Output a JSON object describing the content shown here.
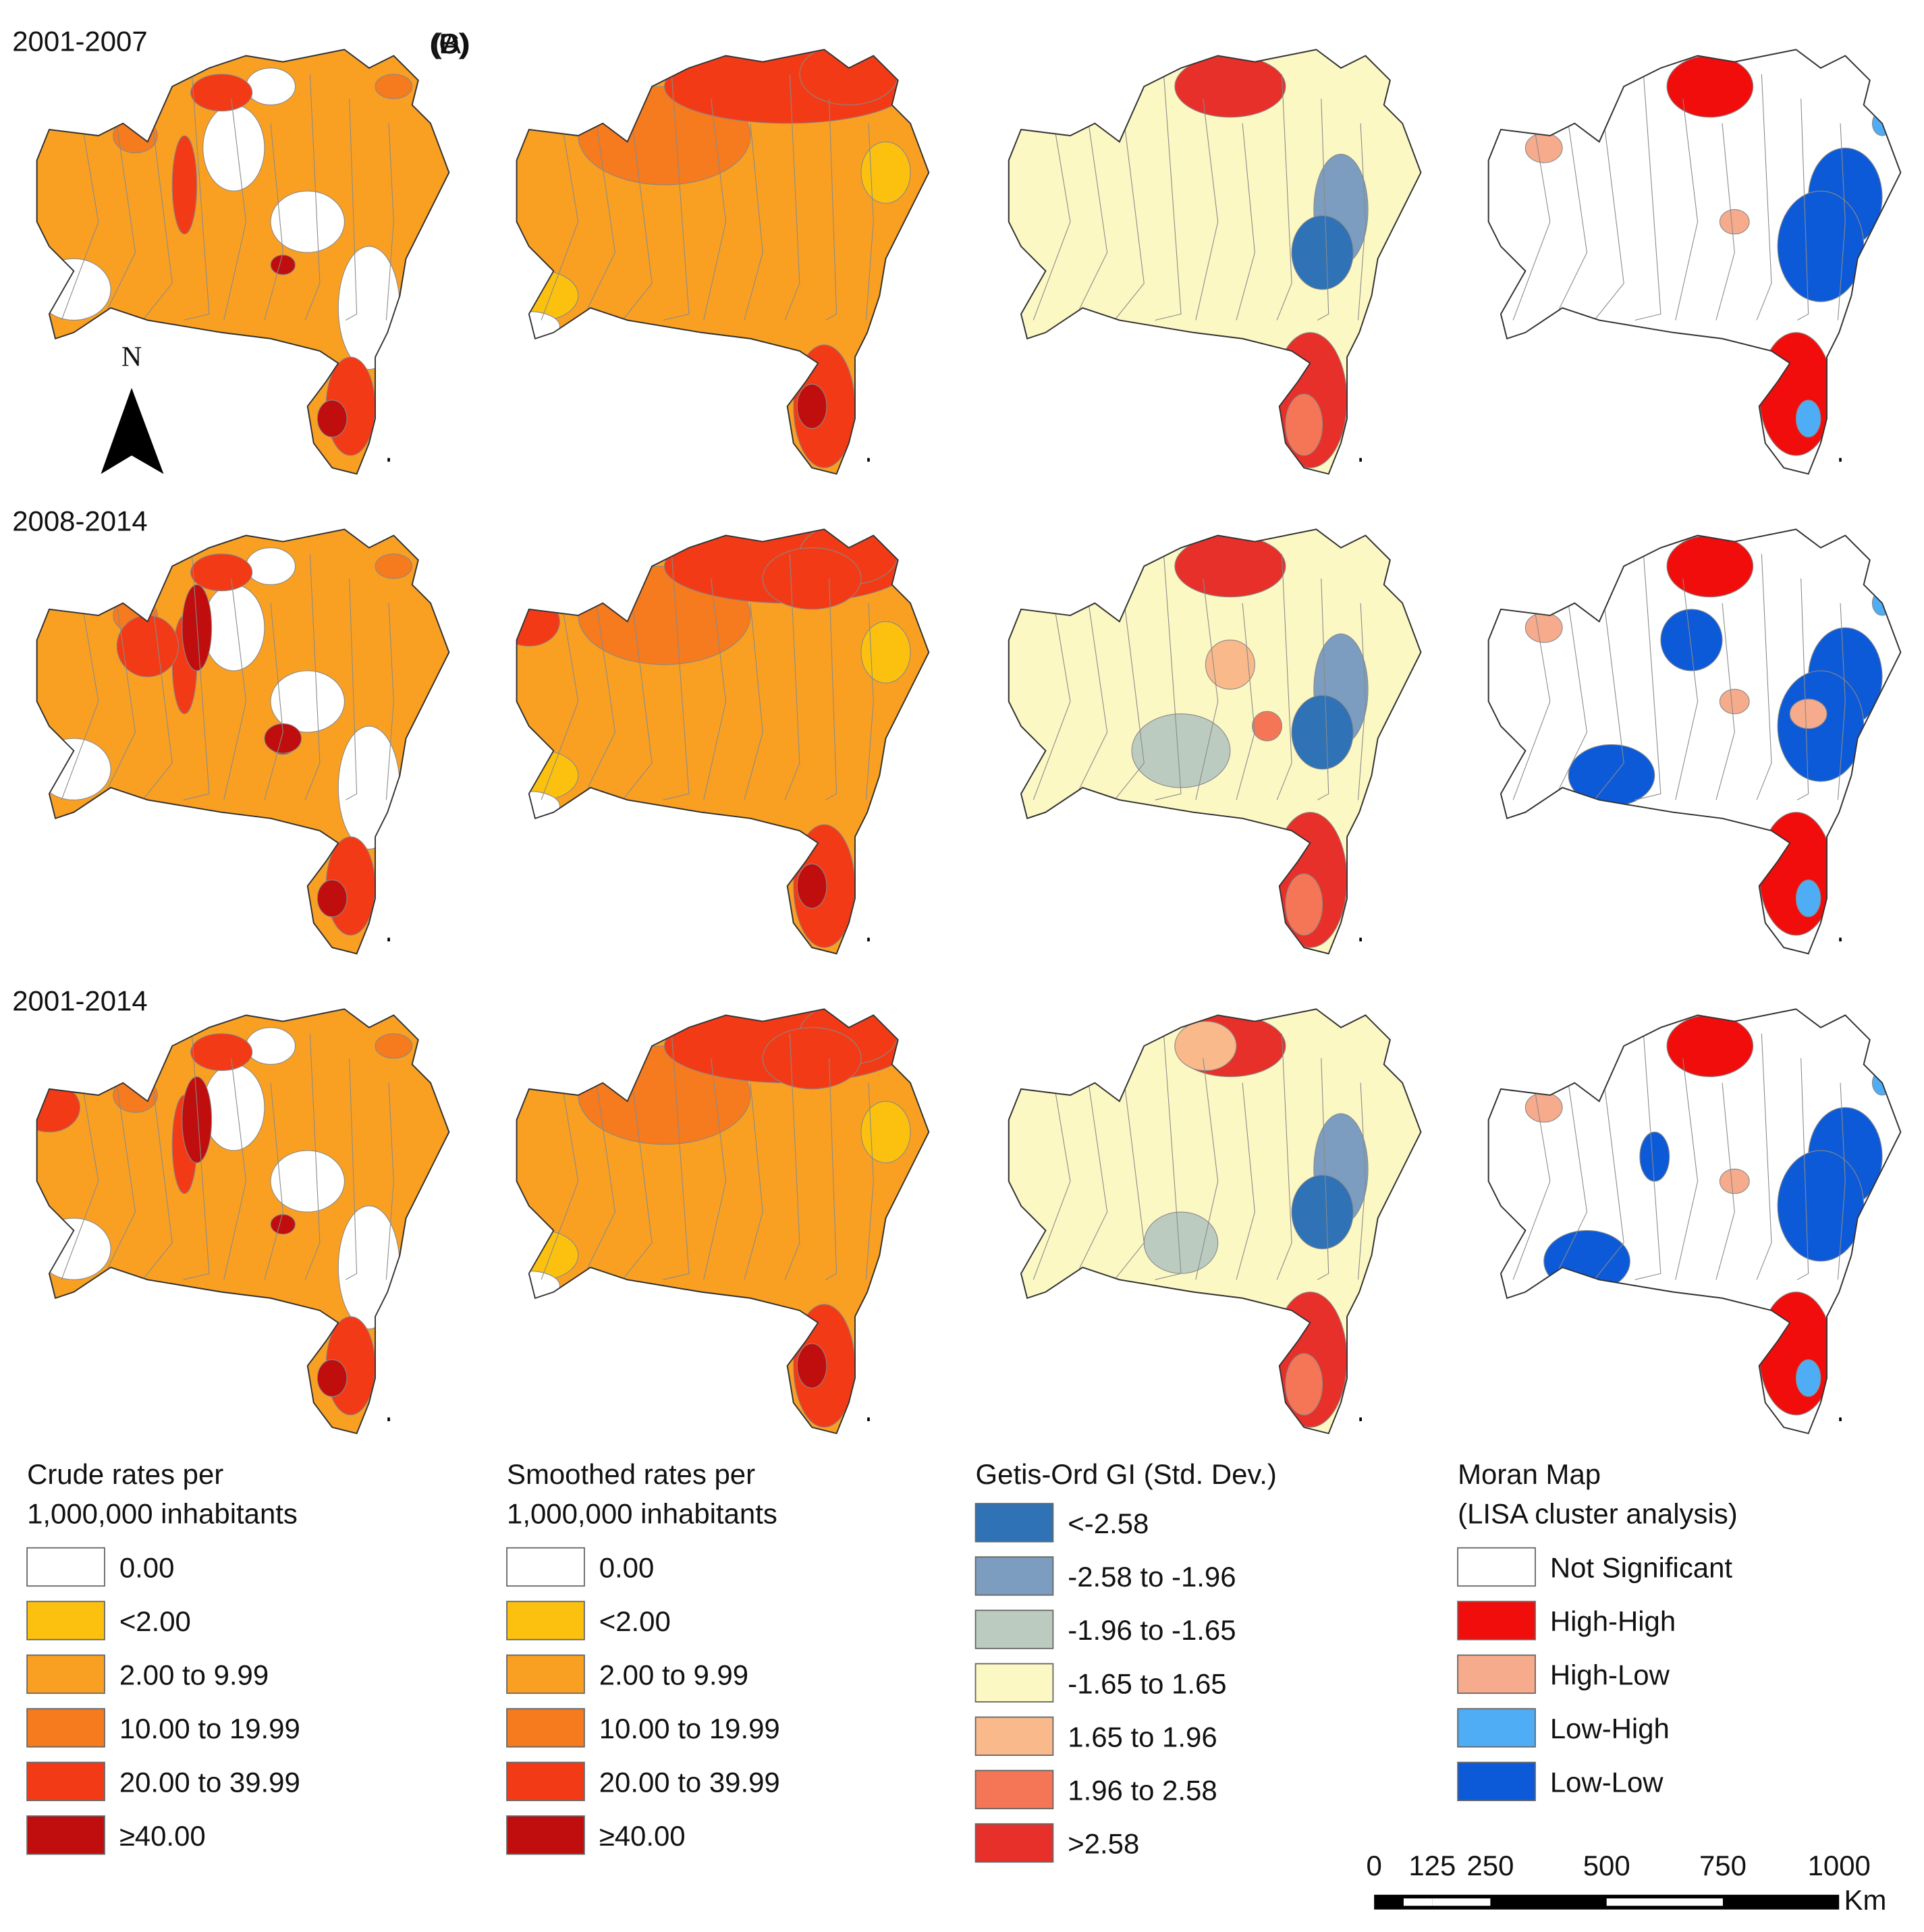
{
  "periods": [
    "2001-2007",
    "2008-2014",
    "2001-2014"
  ],
  "panels": [
    "(A)",
    "(B)",
    "(C)",
    "(D)"
  ],
  "north": "N",
  "legends": [
    {
      "title": [
        "Crude rates per",
        "1,000,000 inhabitants"
      ],
      "items": [
        {
          "label": "0.00",
          "color": "#ffffff"
        },
        {
          "label": "<2.00",
          "color": "#fcc10f"
        },
        {
          "label": "2.00 to 9.99",
          "color": "#f9a023"
        },
        {
          "label": "10.00 to 19.99",
          "color": "#f67a1e"
        },
        {
          "label": "20.00 to 39.99",
          "color": "#f23b16"
        },
        {
          "label": "≥40.00",
          "color": "#c00d0d"
        }
      ]
    },
    {
      "title": [
        "Smoothed rates per",
        "1,000,000 inhabitants"
      ],
      "items": [
        {
          "label": "0.00",
          "color": "#ffffff"
        },
        {
          "label": "<2.00",
          "color": "#fcc10f"
        },
        {
          "label": "2.00 to 9.99",
          "color": "#f9a023"
        },
        {
          "label": "10.00 to 19.99",
          "color": "#f67a1e"
        },
        {
          "label": "20.00 to 39.99",
          "color": "#f23b16"
        },
        {
          "label": "≥40.00",
          "color": "#c00d0d"
        }
      ]
    },
    {
      "title": [
        "Getis-Ord GI (Std. Dev.)"
      ],
      "items": [
        {
          "label": "<-2.58",
          "color": "#2f72b5"
        },
        {
          "label": "-2.58 to -1.96",
          "color": "#7c9dbf"
        },
        {
          "label": "-1.96 to -1.65",
          "color": "#bccbc0"
        },
        {
          "label": "-1.65 to 1.65",
          "color": "#fcf8c4"
        },
        {
          "label": "1.65 to 1.96",
          "color": "#f9b98a"
        },
        {
          "label": "1.96 to 2.58",
          "color": "#f57656"
        },
        {
          "label": ">2.58",
          "color": "#e8302b"
        }
      ]
    },
    {
      "title": [
        "Moran Map",
        "(LISA cluster analysis)"
      ],
      "items": [
        {
          "label": "Not Significant",
          "color": "#ffffff"
        },
        {
          "label": "High-High",
          "color": "#f20d0d"
        },
        {
          "label": "High-Low",
          "color": "#f6ab8c"
        },
        {
          "label": "Low-High",
          "color": "#4fadf5"
        },
        {
          "label": "Low-Low",
          "color": "#0d5ad8"
        }
      ]
    }
  ],
  "scale_bar": {
    "ticks": [
      0,
      125,
      250,
      500,
      750,
      1000
    ],
    "unit": "Km"
  }
}
